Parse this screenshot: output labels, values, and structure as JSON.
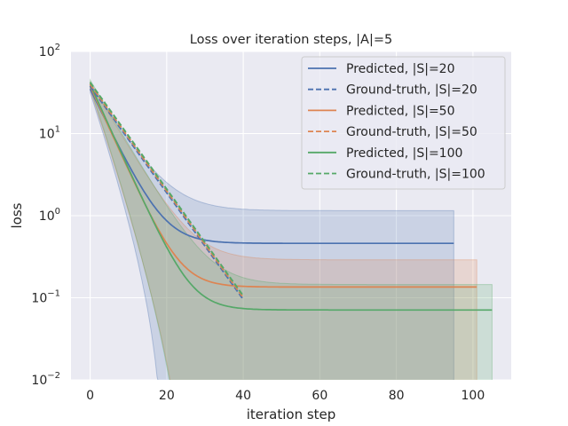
{
  "chart_data": {
    "type": "line",
    "title": "Loss over iteration steps, |A|=5",
    "xlabel": "iteration step",
    "ylabel": "loss",
    "xlim": [
      -5,
      110
    ],
    "ylim": [
      0.01,
      100
    ],
    "yscale": "log",
    "xticks": [
      0,
      20,
      40,
      60,
      80,
      100
    ],
    "yticks": [
      {
        "value": 100,
        "base": "10",
        "exp": "2"
      },
      {
        "value": 10,
        "base": "10",
        "exp": "1"
      },
      {
        "value": 1,
        "base": "10",
        "exp": "0"
      },
      {
        "value": 0.1,
        "base": "10",
        "exp": "−1"
      },
      {
        "value": 0.01,
        "base": "10",
        "exp": "−2"
      }
    ],
    "grid": true,
    "legend_position": "top-right",
    "series": [
      {
        "name": "Predicted, |S|=20",
        "style": "solid",
        "color": "#4c72b0",
        "start": 35,
        "plateau": 0.46,
        "tau": 4.5,
        "end": 95,
        "band": {
          "upper_start": 40,
          "upper_plateau": 1.15,
          "upper_tau": 6,
          "lower_zero_at": 20
        }
      },
      {
        "name": "Ground-truth, |S|=20",
        "style": "dashed",
        "color": "#4c72b0",
        "start": 38,
        "decay_per_step": 0.861,
        "end": 40
      },
      {
        "name": "Predicted, |S|=50",
        "style": "solid",
        "color": "#dd8452",
        "start": 38,
        "plateau": 0.135,
        "tau": 4.2,
        "end": 101,
        "band": {
          "upper_start": 42,
          "upper_plateau": 0.29,
          "upper_tau": 5.5,
          "lower_zero_at": 26
        }
      },
      {
        "name": "Ground-truth, |S|=50",
        "style": "dashed",
        "color": "#dd8452",
        "start": 40,
        "decay_per_step": 0.861,
        "end": 40
      },
      {
        "name": "Predicted, |S|=100",
        "style": "solid",
        "color": "#55a868",
        "start": 40,
        "plateau": 0.071,
        "tau": 4.2,
        "end": 105,
        "band": {
          "upper_start": 45,
          "upper_plateau": 0.145,
          "upper_tau": 5.5,
          "lower_zero_at": 26
        }
      },
      {
        "name": "Ground-truth, |S|=100",
        "style": "dashed",
        "color": "#55a868",
        "start": 42,
        "decay_per_step": 0.861,
        "end": 40
      }
    ]
  },
  "colors": {
    "plot_background": "#eaeaf2",
    "grid": "#ffffff",
    "text": "#262626"
  }
}
